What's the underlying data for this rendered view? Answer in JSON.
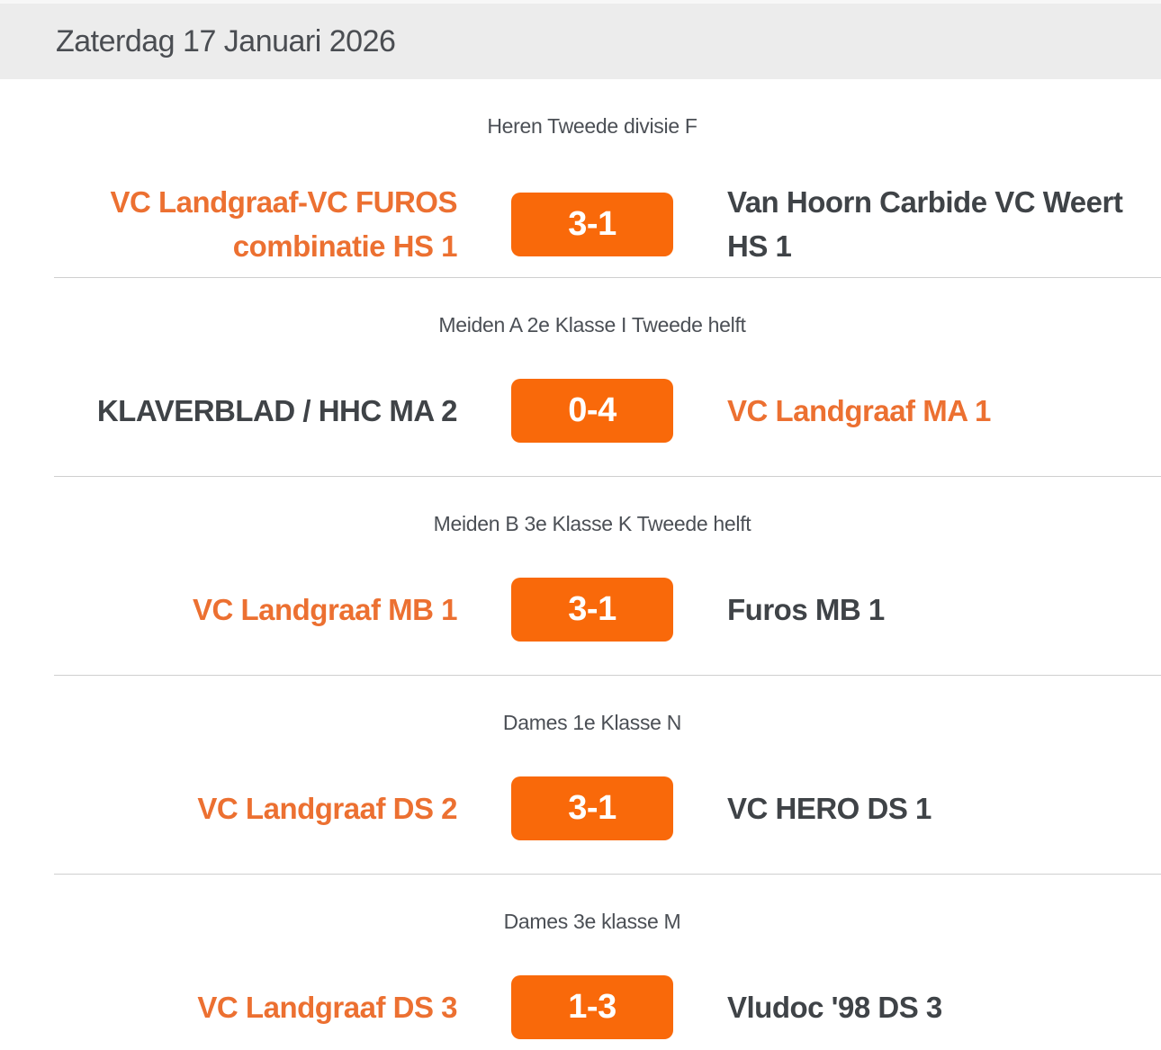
{
  "page": {
    "date_header": "Zaterdag 17 Januari 2026"
  },
  "colors": {
    "header_bg": "#ececec",
    "badge_orange": "#f9690a",
    "link_orange": "#ec7031",
    "text_dark": "#3f4347",
    "label_gray": "#4b4f55",
    "divider": "#cfcfcf"
  },
  "matches": [
    {
      "competition": "Heren Tweede divisie F",
      "home": "VC Landgraaf-VC FUROS combinatie HS 1",
      "home_highlight": true,
      "score": "3-1",
      "away": "Van Hoorn Carbide VC Weert HS 1",
      "away_highlight": false
    },
    {
      "competition": "Meiden A 2e Klasse I Tweede helft",
      "home": "KLAVERBLAD / HHC MA 2",
      "home_highlight": false,
      "score": "0-4",
      "away": "VC Landgraaf MA 1",
      "away_highlight": true
    },
    {
      "competition": "Meiden B 3e Klasse K Tweede helft",
      "home": "VC Landgraaf MB 1",
      "home_highlight": true,
      "score": "3-1",
      "away": "Furos MB 1",
      "away_highlight": false
    },
    {
      "competition": "Dames 1e Klasse N",
      "home": "VC Landgraaf DS 2",
      "home_highlight": true,
      "score": "3-1",
      "away": "VC HERO DS 1",
      "away_highlight": false
    },
    {
      "competition": "Dames 3e klasse M",
      "home": "VC Landgraaf DS 3",
      "home_highlight": true,
      "score": "1-3",
      "away": "Vludoc '98 DS 3",
      "away_highlight": false
    }
  ]
}
